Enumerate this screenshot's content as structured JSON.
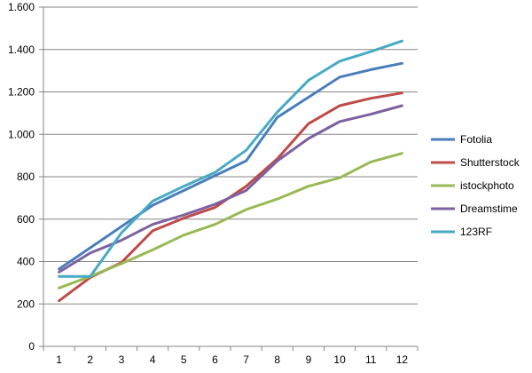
{
  "chart_data": {
    "type": "line",
    "title": "",
    "xlabel": "",
    "ylabel": "",
    "x": [
      1,
      2,
      3,
      4,
      5,
      6,
      7,
      8,
      9,
      10,
      11,
      12
    ],
    "x_tick_labels": [
      "1",
      "2",
      "3",
      "4",
      "5",
      "6",
      "7",
      "8",
      "9",
      "10",
      "11",
      "12"
    ],
    "ylim": [
      0,
      1600
    ],
    "y_ticks": [
      0,
      200,
      400,
      600,
      800,
      1000,
      1200,
      1400,
      1600
    ],
    "y_tick_labels": [
      "0",
      "200",
      "400",
      "600",
      "800",
      "1.000",
      "1.200",
      "1.400",
      "1.600"
    ],
    "grid": "horizontal",
    "legend_position": "right",
    "series": [
      {
        "name": "Fotolia",
        "color": "#4a7ebb",
        "values": [
          365,
          465,
          565,
          665,
          735,
          805,
          875,
          1080,
          1175,
          1270,
          1305,
          1335
        ]
      },
      {
        "name": "Shutterstock",
        "color": "#be4b48",
        "values": [
          215,
          325,
          395,
          545,
          605,
          655,
          755,
          885,
          1050,
          1135,
          1170,
          1195
        ]
      },
      {
        "name": "istockphoto",
        "color": "#98b954",
        "values": [
          275,
          330,
          390,
          455,
          525,
          575,
          645,
          695,
          755,
          795,
          870,
          910
        ]
      },
      {
        "name": "Dreamstime",
        "color": "#7d60a0",
        "values": [
          350,
          440,
          500,
          575,
          620,
          670,
          735,
          875,
          980,
          1060,
          1095,
          1135
        ]
      },
      {
        "name": "123RF",
        "color": "#46aac5",
        "values": [
          330,
          330,
          535,
          685,
          755,
          820,
          925,
          1105,
          1255,
          1345,
          1390,
          1440
        ]
      }
    ]
  }
}
